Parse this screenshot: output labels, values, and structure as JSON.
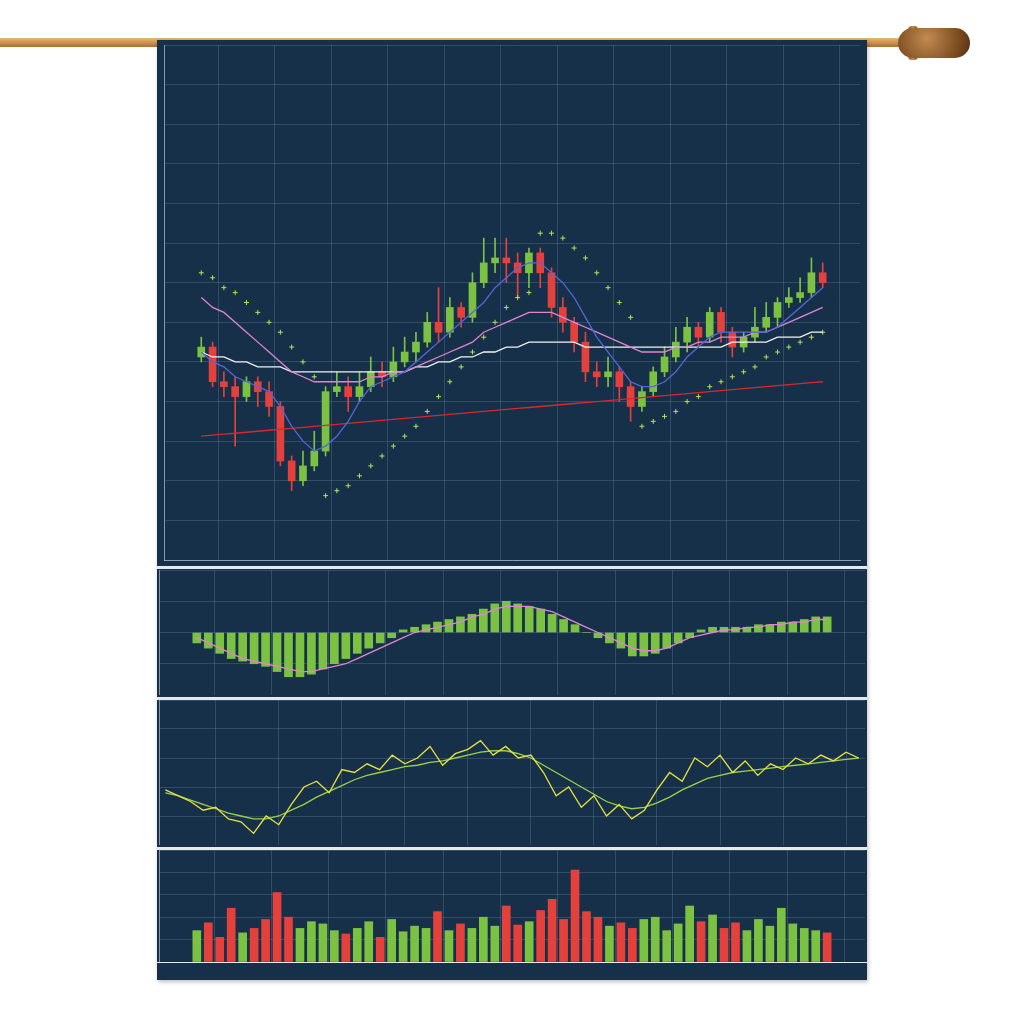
{
  "chart_data": [
    {
      "type": "candlestick",
      "x": [
        1,
        2,
        3,
        4,
        5,
        6,
        7,
        8,
        9,
        10,
        11,
        12,
        13,
        14,
        15,
        16,
        17,
        18,
        19,
        20,
        21,
        22,
        23,
        24,
        25,
        26,
        27,
        28,
        29,
        30,
        31,
        32,
        33,
        34,
        35,
        36,
        37,
        38,
        39,
        40,
        41,
        42,
        43,
        44,
        45,
        46,
        47,
        48,
        49,
        50,
        51,
        52,
        53,
        54,
        55,
        56
      ],
      "xlim": [
        0.5,
        56.5
      ],
      "xticks": [
        5,
        10,
        15,
        20,
        25,
        30,
        35,
        40,
        45,
        50,
        55
      ],
      "ylim": [
        0,
        104
      ],
      "yticks": [
        0,
        8,
        16,
        24,
        32,
        40,
        48,
        56,
        64,
        72,
        80,
        88,
        96,
        104
      ],
      "open": [
        41,
        43,
        36,
        35,
        33,
        36,
        34,
        31,
        20,
        16,
        19,
        22,
        34,
        35,
        33,
        35,
        38,
        37,
        40,
        42,
        44,
        48,
        46,
        51,
        49,
        56,
        60,
        61,
        60,
        58,
        62,
        58,
        51,
        48,
        44,
        38,
        37,
        38,
        35,
        31,
        34,
        38,
        41,
        44,
        47,
        45,
        50,
        46,
        43,
        45,
        47,
        49,
        52,
        53,
        54,
        58
      ],
      "high": [
        45,
        44,
        38,
        37,
        37,
        37,
        36,
        32,
        21,
        22,
        26,
        35,
        38,
        37,
        38,
        41,
        40,
        43,
        45,
        46,
        50,
        55,
        53,
        52,
        58,
        65,
        65,
        65,
        62,
        63,
        63,
        59,
        53,
        49,
        46,
        40,
        41,
        39,
        36,
        35,
        39,
        43,
        47,
        49,
        48,
        51,
        51,
        47,
        46,
        51,
        52,
        53,
        55,
        57,
        61,
        60
      ],
      "low": [
        40,
        35,
        33,
        23,
        32,
        31,
        29,
        19,
        14,
        15,
        18,
        21,
        33,
        30,
        32,
        34,
        35,
        36,
        39,
        40,
        43,
        44,
        45,
        47,
        48,
        55,
        58,
        56,
        53,
        55,
        55,
        49,
        46,
        42,
        36,
        35,
        35,
        32,
        28,
        30,
        33,
        37,
        40,
        42,
        43,
        44,
        44,
        41,
        42,
        44,
        46,
        47,
        51,
        52,
        53,
        55
      ],
      "close": [
        43,
        36,
        35,
        33,
        36,
        34,
        31,
        20,
        16,
        19,
        22,
        34,
        35,
        33,
        35,
        38,
        37,
        40,
        42,
        44,
        48,
        46,
        51,
        49,
        56,
        60,
        61,
        60,
        58,
        62,
        58,
        51,
        48,
        44,
        38,
        37,
        38,
        35,
        31,
        34,
        38,
        41,
        44,
        47,
        45,
        50,
        46,
        43,
        45,
        47,
        49,
        52,
        53,
        54,
        58,
        56
      ],
      "colors": [
        "#7cc242",
        "#e5413c",
        "#e5413c",
        "#e5413c",
        "#7cc242",
        "#e5413c",
        "#e5413c",
        "#e5413c",
        "#e5413c",
        "#7cc242",
        "#7cc242",
        "#7cc242",
        "#7cc242",
        "#e5413c",
        "#7cc242",
        "#7cc242",
        "#e5413c",
        "#7cc242",
        "#7cc242",
        "#7cc242",
        "#7cc242",
        "#e5413c",
        "#7cc242",
        "#e5413c",
        "#7cc242",
        "#7cc242",
        "#7cc242",
        "#e5413c",
        "#e5413c",
        "#7cc242",
        "#e5413c",
        "#e5413c",
        "#e5413c",
        "#e5413c",
        "#e5413c",
        "#e5413c",
        "#7cc242",
        "#e5413c",
        "#e5413c",
        "#7cc242",
        "#7cc242",
        "#7cc242",
        "#7cc242",
        "#7cc242",
        "#e5413c",
        "#7cc242",
        "#e5413c",
        "#e5413c",
        "#7cc242",
        "#7cc242",
        "#7cc242",
        "#7cc242",
        "#7cc242",
        "#7cc242",
        "#7cc242",
        "#e5413c"
      ],
      "series": [
        {
          "type": "line",
          "color": "#5566d8",
          "values": [
            42,
            40,
            39,
            37,
            36,
            35,
            34,
            31,
            27,
            24,
            22,
            23,
            25,
            28,
            32,
            35,
            36,
            37,
            38,
            40,
            42,
            44,
            46,
            48,
            50,
            52,
            55,
            57,
            59,
            60,
            60,
            58,
            56,
            53,
            49,
            45,
            42,
            39,
            36,
            35,
            35,
            36,
            38,
            41,
            43,
            45,
            46,
            46,
            46,
            46,
            46,
            47,
            49,
            51,
            53,
            55
          ]
        },
        {
          "type": "line",
          "color": "#e184d2",
          "values": [
            53,
            51,
            50,
            48,
            46,
            44,
            42,
            40,
            38,
            37,
            36,
            36,
            36,
            36,
            36,
            37,
            37,
            38,
            38,
            39,
            40,
            41,
            42,
            43,
            44,
            46,
            47,
            48,
            49,
            50,
            50,
            50,
            49,
            48,
            47,
            46,
            45,
            44,
            43,
            42,
            42,
            42,
            43,
            43,
            44,
            44,
            45,
            45,
            45,
            46,
            46,
            47,
            48,
            49,
            50,
            51
          ]
        },
        {
          "type": "line",
          "color": "#f2f2f2",
          "values": [
            42,
            41,
            41,
            40,
            40,
            39,
            39,
            39,
            38,
            38,
            38,
            38,
            38,
            38,
            38,
            38,
            38,
            38,
            38,
            39,
            39,
            40,
            40,
            41,
            41,
            42,
            42,
            43,
            43,
            44,
            44,
            44,
            44,
            44,
            43,
            43,
            43,
            43,
            43,
            43,
            43,
            43,
            43,
            43,
            43,
            43,
            43,
            44,
            44,
            44,
            44,
            45,
            45,
            45,
            46,
            46
          ]
        },
        {
          "type": "line",
          "color": "#d9272e",
          "values": [
            25.0,
            25.2,
            25.4,
            25.6,
            25.8,
            26.0,
            26.2,
            26.4,
            26.6,
            26.8,
            27.0,
            27.2,
            27.4,
            27.6,
            27.8,
            28.0,
            28.2,
            28.4,
            28.6,
            28.8,
            29.0,
            29.2,
            29.4,
            29.6,
            29.8,
            30.0,
            30.2,
            30.4,
            30.6,
            30.8,
            31.0,
            31.2,
            31.4,
            31.6,
            31.8,
            32.0,
            32.2,
            32.4,
            32.6,
            32.8,
            33.0,
            33.2,
            33.4,
            33.6,
            33.8,
            34.0,
            34.2,
            34.4,
            34.6,
            34.8,
            35.0,
            35.2,
            35.4,
            35.6,
            35.8,
            36.0
          ]
        },
        {
          "type": "scatter",
          "marker": "cross",
          "color": "#b8e05c",
          "values": [
            58,
            57,
            55,
            54,
            52,
            50,
            48,
            46,
            43,
            40,
            37,
            13,
            14,
            15,
            17,
            19,
            21,
            23,
            25,
            27,
            30,
            33,
            36,
            39,
            42,
            45,
            48,
            51,
            53,
            54,
            66,
            66,
            65,
            63,
            61,
            58,
            55,
            52,
            49,
            27,
            28,
            29,
            30,
            32,
            33,
            35,
            36,
            37,
            38,
            39,
            41,
            42,
            43,
            44,
            45,
            46
          ]
        }
      ],
      "grid": true,
      "tick_labels": false
    },
    {
      "type": "bar",
      "x": [
        1,
        2,
        3,
        4,
        5,
        6,
        7,
        8,
        9,
        10,
        11,
        12,
        13,
        14,
        15,
        16,
        17,
        18,
        19,
        20,
        21,
        22,
        23,
        24,
        25,
        26,
        27,
        28,
        29,
        30,
        31,
        32,
        33,
        34,
        35,
        36,
        37,
        38,
        39,
        40,
        41,
        42,
        43,
        44,
        45,
        46,
        47,
        48,
        49,
        50,
        51,
        52,
        53,
        54,
        55,
        56
      ],
      "xlim": [
        0.5,
        56.5
      ],
      "xticks": [
        5,
        10,
        15,
        20,
        25,
        30,
        35,
        40,
        45,
        50,
        55
      ],
      "ylim": [
        -12,
        12
      ],
      "yticks": [
        -12,
        -6,
        0,
        6,
        12
      ],
      "values": [
        -2,
        -3,
        -4,
        -5,
        -5.5,
        -6,
        -6.5,
        -7.5,
        -8.5,
        -8.5,
        -8,
        -7,
        -6,
        -5,
        -4,
        -3,
        -2,
        -1,
        0.5,
        1,
        1.5,
        2,
        2.5,
        3,
        3.5,
        4.5,
        5.5,
        6,
        5.5,
        5,
        4.5,
        3.5,
        2.5,
        1.5,
        0,
        -1,
        -2,
        -3,
        -4.5,
        -4.5,
        -4,
        -3,
        -2,
        -1,
        0.5,
        1,
        1,
        1,
        1,
        1.5,
        1.5,
        2,
        2,
        2.5,
        3,
        3
      ],
      "color": "#7cc242",
      "series": [
        {
          "type": "line",
          "color": "#e184d2",
          "values": [
            -1,
            -2,
            -3,
            -4,
            -5,
            -5.5,
            -6,
            -6.5,
            -7,
            -7.5,
            -7.5,
            -7,
            -6.5,
            -6,
            -5,
            -4,
            -3,
            -2,
            -1,
            0,
            0.5,
            1,
            1.5,
            2,
            3,
            3.5,
            4.5,
            5,
            5,
            5,
            4.5,
            4,
            3,
            2,
            1,
            0,
            -1,
            -2,
            -3,
            -3.5,
            -3.5,
            -3,
            -2,
            -1,
            -0.5,
            0,
            0.5,
            0.5,
            1,
            1,
            1.5,
            1.5,
            2,
            2,
            2.5,
            2.5
          ]
        }
      ],
      "grid": true,
      "tick_labels": false
    },
    {
      "type": "line",
      "x": [
        1,
        2,
        3,
        4,
        5,
        6,
        7,
        8,
        9,
        10,
        11,
        12,
        13,
        14,
        15,
        16,
        17,
        18,
        19,
        20,
        21,
        22,
        23,
        24,
        25,
        26,
        27,
        28,
        29,
        30,
        31,
        32,
        33,
        34,
        35,
        36,
        37,
        38,
        39,
        40,
        41,
        42,
        43,
        44,
        45,
        46,
        47,
        48,
        49,
        50,
        51,
        52,
        53,
        54,
        55,
        56
      ],
      "xlim": [
        0.5,
        56.5
      ],
      "xticks": [
        5,
        10,
        15,
        20,
        25,
        30,
        35,
        40,
        45,
        50,
        55
      ],
      "ylim": [
        0,
        100
      ],
      "yticks": [
        0,
        20,
        40,
        60,
        80,
        100
      ],
      "series": [
        {
          "color": "#e8e23c",
          "values": [
            38,
            34,
            30,
            24,
            26,
            18,
            16,
            8,
            20,
            14,
            28,
            40,
            44,
            36,
            52,
            50,
            56,
            52,
            62,
            56,
            60,
            68,
            55,
            63,
            66,
            72,
            62,
            68,
            60,
            62,
            50,
            34,
            40,
            26,
            34,
            20,
            28,
            18,
            24,
            38,
            50,
            44,
            60,
            54,
            62,
            50,
            58,
            48,
            56,
            52,
            60,
            56,
            62,
            58,
            64,
            60
          ]
        },
        {
          "color": "#9bd14a",
          "values": [
            36,
            34,
            31,
            28,
            25,
            22,
            20,
            18,
            18,
            20,
            24,
            28,
            33,
            37,
            41,
            45,
            48,
            50,
            52,
            54,
            55,
            57,
            58,
            60,
            62,
            64,
            65,
            65,
            63,
            60,
            55,
            50,
            45,
            40,
            35,
            30,
            27,
            25,
            26,
            29,
            33,
            38,
            42,
            46,
            48,
            50,
            51,
            52,
            53,
            54,
            55,
            56,
            57,
            58,
            59,
            60
          ]
        }
      ],
      "grid": true,
      "tick_labels": false
    },
    {
      "type": "bar",
      "x": [
        1,
        2,
        3,
        4,
        5,
        6,
        7,
        8,
        9,
        10,
        11,
        12,
        13,
        14,
        15,
        16,
        17,
        18,
        19,
        20,
        21,
        22,
        23,
        24,
        25,
        26,
        27,
        28,
        29,
        30,
        31,
        32,
        33,
        34,
        35,
        36,
        37,
        38,
        39,
        40,
        41,
        42,
        43,
        44,
        45,
        46,
        47,
        48,
        49,
        50,
        51,
        52,
        53,
        54,
        55,
        56
      ],
      "xlim": [
        0.5,
        56.5
      ],
      "xticks": [
        5,
        10,
        15,
        20,
        25,
        30,
        35,
        40,
        45,
        50,
        55
      ],
      "ylim": [
        0,
        100
      ],
      "yticks": [
        0,
        20,
        40,
        60,
        80,
        100
      ],
      "values": [
        28,
        35,
        22,
        48,
        26,
        30,
        38,
        62,
        40,
        30,
        36,
        34,
        28,
        25,
        30,
        36,
        22,
        38,
        27,
        32,
        30,
        45,
        28,
        34,
        30,
        40,
        32,
        50,
        33,
        36,
        46,
        56,
        38,
        82,
        45,
        40,
        32,
        35,
        30,
        38,
        40,
        28,
        34,
        50,
        36,
        42,
        30,
        35,
        28,
        38,
        32,
        48,
        34,
        30,
        28,
        26
      ],
      "colors": [
        "#7cc242",
        "#e5413c",
        "#e5413c",
        "#e5413c",
        "#7cc242",
        "#e5413c",
        "#e5413c",
        "#e5413c",
        "#e5413c",
        "#7cc242",
        "#7cc242",
        "#7cc242",
        "#7cc242",
        "#e5413c",
        "#7cc242",
        "#7cc242",
        "#e5413c",
        "#7cc242",
        "#7cc242",
        "#7cc242",
        "#7cc242",
        "#e5413c",
        "#7cc242",
        "#e5413c",
        "#7cc242",
        "#7cc242",
        "#7cc242",
        "#e5413c",
        "#e5413c",
        "#7cc242",
        "#e5413c",
        "#e5413c",
        "#e5413c",
        "#e5413c",
        "#e5413c",
        "#e5413c",
        "#7cc242",
        "#e5413c",
        "#e5413c",
        "#7cc242",
        "#7cc242",
        "#7cc242",
        "#7cc242",
        "#7cc242",
        "#e5413c",
        "#7cc242",
        "#e5413c",
        "#e5413c",
        "#7cc242",
        "#7cc242",
        "#7cc242",
        "#7cc242",
        "#7cc242",
        "#7cc242",
        "#7cc242",
        "#e5413c"
      ],
      "grid": true,
      "tick_labels": false
    }
  ]
}
